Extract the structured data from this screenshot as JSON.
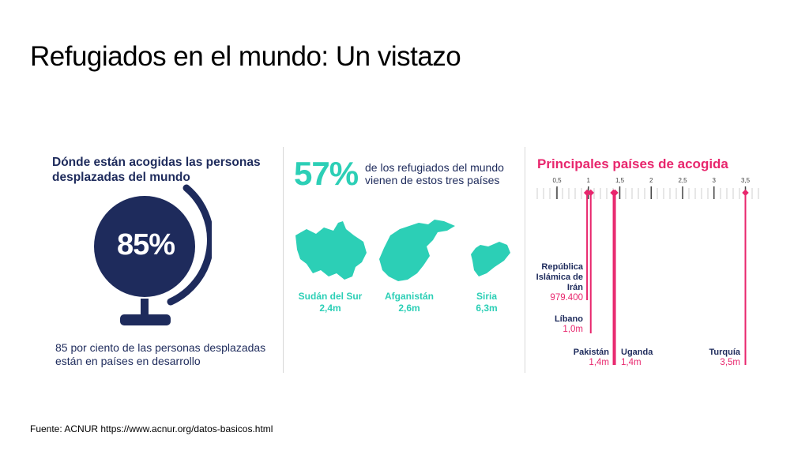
{
  "title": "Refugiados en el mundo:  Un vistazo",
  "source": "Fuente:  ACNUR https://www.acnur.org/datos-basicos.html",
  "colors": {
    "navy": "#1e2b5c",
    "teal": "#2ccfb6",
    "pink": "#e8266d"
  },
  "panel1": {
    "heading": "Dónde están acogidas las personas desplazadas del mundo",
    "percent": "85%",
    "caption": "85 por ciento de las personas desplazadas están en países en desarrollo",
    "icon": "globe-icon"
  },
  "panel2": {
    "big_percent": "57%",
    "subtitle": "de los refugiados del mundo vienen de estos tres países",
    "countries": [
      {
        "name": "Sudán del Sur",
        "value": "2,4m",
        "icon": "south-sudan-map-icon"
      },
      {
        "name": "Afganistán",
        "value": "2,6m",
        "icon": "afghanistan-map-icon"
      },
      {
        "name": "Siria",
        "value": "6,3m",
        "icon": "syria-map-icon"
      }
    ]
  },
  "panel3": {
    "heading": "Principales países de acogida",
    "ticks": [
      "0,5",
      "1",
      "1,5",
      "2",
      "2,5",
      "3",
      "3,5"
    ],
    "hosts": [
      {
        "name": "República Islámica de Irán",
        "value": "979.400",
        "amount": 0.9794
      },
      {
        "name": "Líbano",
        "value": "1,0m",
        "amount": 1.0
      },
      {
        "name": "Pakistán",
        "value": "1,4m",
        "amount": 1.4
      },
      {
        "name": "Uganda",
        "value": "1,4m",
        "amount": 1.4
      },
      {
        "name": "Turquía",
        "value": "3,5m",
        "amount": 3.5
      }
    ]
  }
}
